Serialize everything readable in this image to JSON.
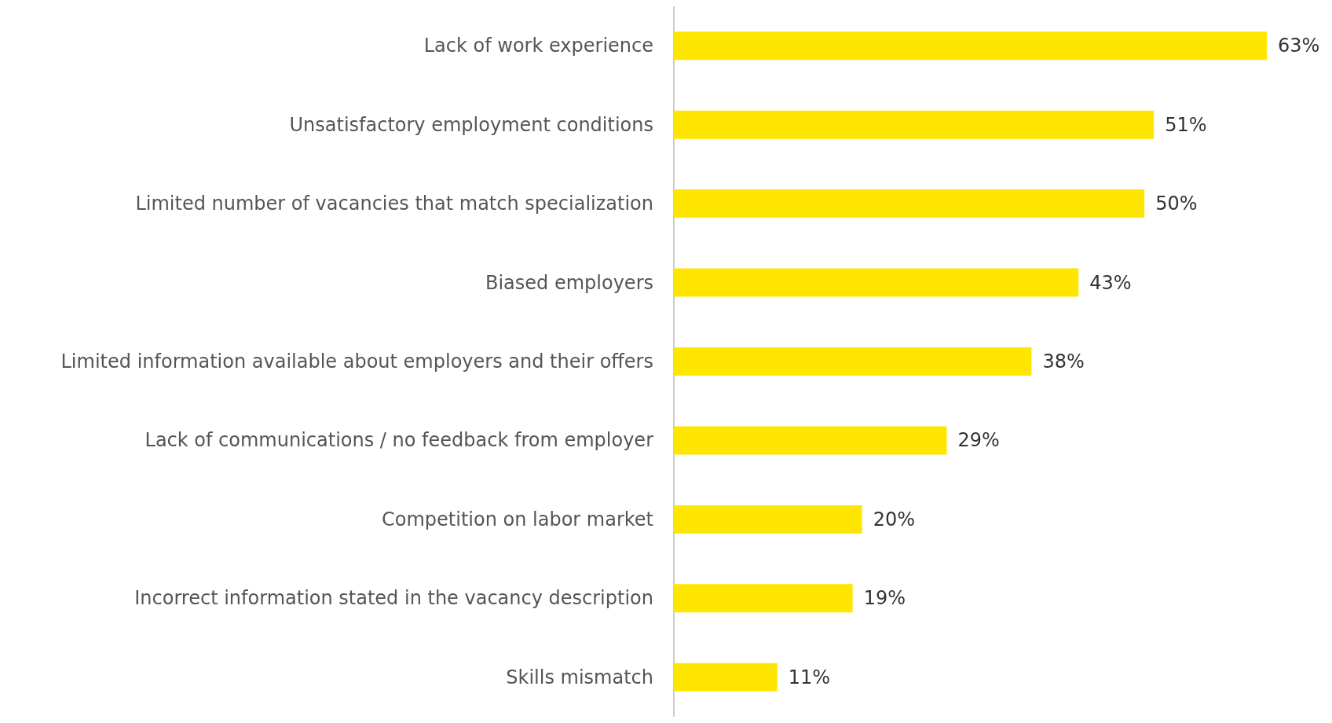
{
  "chart_data": {
    "type": "bar",
    "orientation": "horizontal",
    "categories": [
      "Lack of work experience",
      "Unsatisfactory employment conditions",
      "Limited number of vacancies that match specialization",
      "Biased employers",
      "Limited information available about employers and their offers",
      "Lack of communications / no feedback from employer",
      "Competition on labor market",
      "Incorrect information stated in the vacancy description",
      "Skills mismatch"
    ],
    "values": [
      63,
      51,
      50,
      43,
      38,
      29,
      20,
      19,
      11
    ],
    "value_labels": [
      "63%",
      "51%",
      "50%",
      "43%",
      "38%",
      "29%",
      "20%",
      "19%",
      "11%"
    ],
    "color": "#ffe600",
    "grid": false
  }
}
